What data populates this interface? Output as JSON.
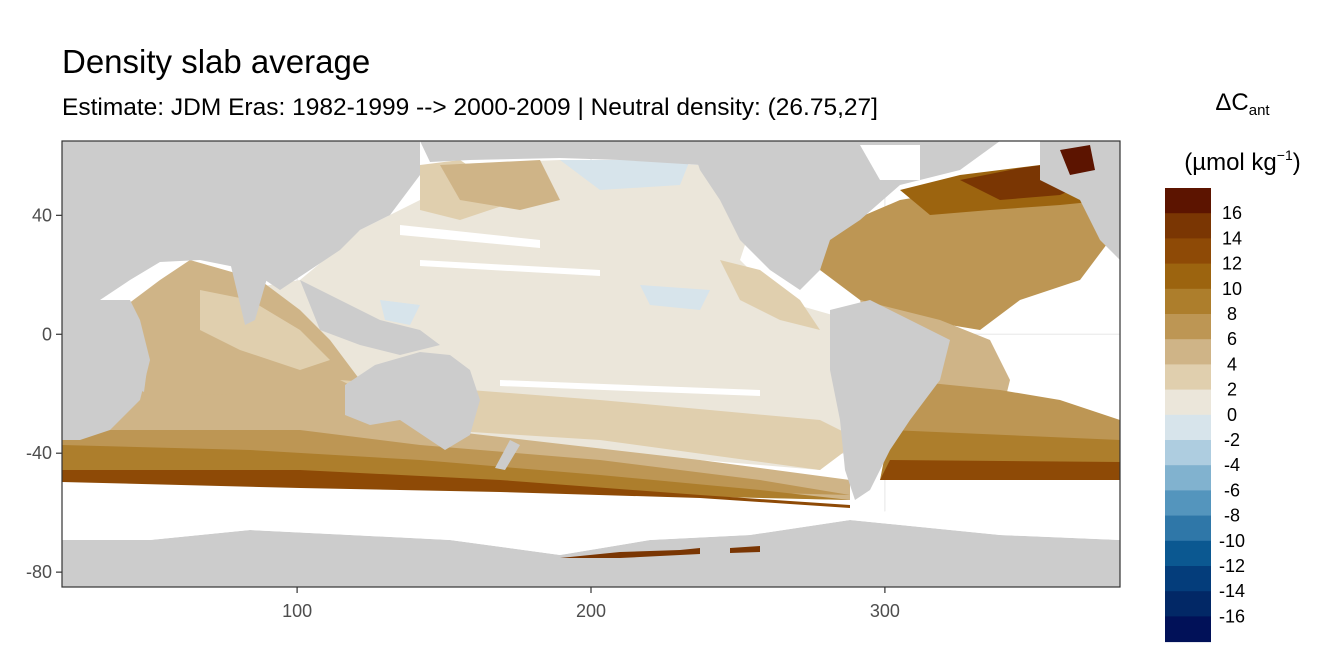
{
  "title": "Density slab average",
  "subtitle": "Estimate: JDM Eras: 1982-1999 --> 2000-2009 | Neutral density: (26.75,27]",
  "legend": {
    "symbol": "ΔC",
    "symbol_sub": "ant",
    "unit_open": "(µmol kg",
    "unit_sup": "−1",
    "unit_close": ")",
    "bins": [
      {
        "label": "16",
        "color": "#5c1400"
      },
      {
        "label": "14",
        "color": "#7a3603"
      },
      {
        "label": "12",
        "color": "#8e4a06"
      },
      {
        "label": "10",
        "color": "#9c640f"
      },
      {
        "label": "8",
        "color": "#ad7e2c"
      },
      {
        "label": "6",
        "color": "#bd9654"
      },
      {
        "label": "4",
        "color": "#cfb487"
      },
      {
        "label": "2",
        "color": "#e0cfae"
      },
      {
        "label": "0",
        "color": "#ebe6da"
      },
      {
        "label": "-2",
        "color": "#d7e4eb"
      },
      {
        "label": "-4",
        "color": "#aecde0"
      },
      {
        "label": "-6",
        "color": "#81b2cf"
      },
      {
        "label": "-8",
        "color": "#5495bd"
      },
      {
        "label": "-10",
        "color": "#2f77a8"
      },
      {
        "label": "-12",
        "color": "#0b5891"
      },
      {
        "label": "-14",
        "color": "#043d7b"
      },
      {
        "label": "-16",
        "color": "#022866"
      },
      {
        "label": "",
        "color": "#011158"
      }
    ]
  },
  "axes": {
    "x_ticks": [
      {
        "value": 100,
        "label": "100"
      },
      {
        "value": 200,
        "label": "200"
      },
      {
        "value": 300,
        "label": "300"
      }
    ],
    "y_ticks": [
      {
        "value": 40,
        "label": "40"
      },
      {
        "value": 0,
        "label": "0"
      },
      {
        "value": -40,
        "label": "-40"
      },
      {
        "value": -80,
        "label": "-80"
      }
    ],
    "x_range": [
      20,
      380
    ],
    "y_range": [
      -85,
      65
    ]
  },
  "colors": {
    "land": "#cccccc",
    "no_data": "#ffffff",
    "grid": "#ebebeb",
    "panel_border": "#333333"
  }
}
